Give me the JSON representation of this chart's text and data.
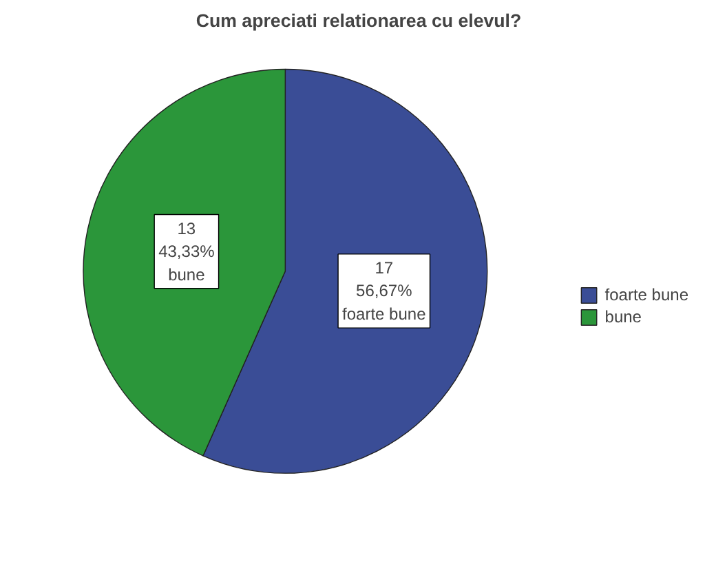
{
  "chart_data": {
    "type": "pie",
    "title": "Cum apreciati relationarea cu elevul?",
    "categories": [
      "foarte bune",
      "bune"
    ],
    "values": [
      17,
      13
    ],
    "colors": [
      "#3a4d96",
      "#2b963a"
    ],
    "value_labels": [
      "17\n56,67%\nfoarte bune",
      "13\n43,33%\nbune"
    ],
    "legend": "right"
  }
}
